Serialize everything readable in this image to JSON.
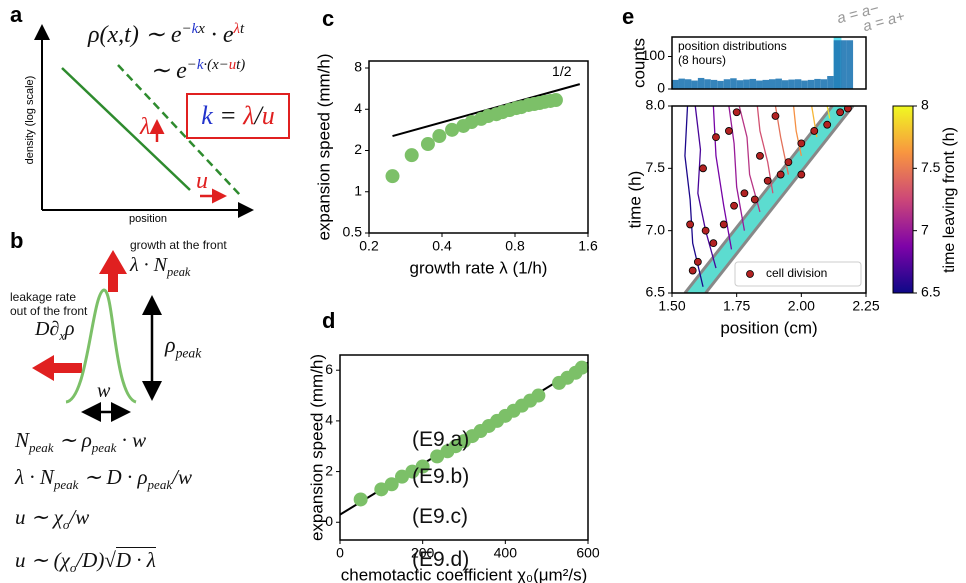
{
  "diagram_a": {
    "label": "a",
    "y_axis_label": "density (log scale)",
    "x_axis_label": "position",
    "equation_1": [
      {
        "text": "ρ(x,t) ∼ e"
      },
      {
        "text": "−",
        "pos": "sup"
      },
      {
        "text": "k",
        "pos": "sup",
        "color": "#2233cc"
      },
      {
        "text": "x",
        "pos": "sup"
      },
      {
        "text": " · e"
      },
      {
        "text": "λ",
        "pos": "sup",
        "color": "#e02020"
      },
      {
        "text": "t",
        "pos": "sup"
      }
    ],
    "equation_2": [
      {
        "text": "∼ e"
      },
      {
        "text": "−",
        "pos": "sup"
      },
      {
        "text": "k",
        "pos": "sup",
        "color": "#2233cc"
      },
      {
        "text": "·(x−",
        "pos": "sup"
      },
      {
        "text": "u",
        "pos": "sup",
        "color": "#e02020"
      },
      {
        "text": "t)",
        "pos": "sup"
      }
    ],
    "boxed_equation": [
      {
        "text": "k",
        "color": "#2233cc"
      },
      {
        "text": " = "
      },
      {
        "text": "λ",
        "color": "#e02020"
      },
      {
        "text": "/"
      },
      {
        "text": "u",
        "color": "#e02020"
      }
    ],
    "arrow_labels": [
      "λ",
      "u"
    ]
  },
  "diagram_b": {
    "label": "b",
    "growth_label": "growth at the front",
    "growth_rate": [
      {
        "text": "λ · N"
      },
      {
        "text": "peak",
        "pos": "sub"
      }
    ],
    "leakage_label_1": "leakage rate",
    "leakage_label_2": "out of the front",
    "leakage_rate": [
      {
        "text": "D∂"
      },
      {
        "text": "x",
        "pos": "sub"
      },
      {
        "text": "ρ"
      }
    ],
    "height": [
      {
        "text": "ρ"
      },
      {
        "text": "peak",
        "pos": "sub"
      }
    ],
    "width": [
      {
        "text": "w"
      }
    ],
    "equations": [
      {
        "expr": [
          {
            "text": "N"
          },
          {
            "text": "peak",
            "pos": "sub"
          },
          {
            "text": " ∼ ρ"
          },
          {
            "text": "peak",
            "pos": "sub"
          },
          {
            "text": " · w"
          }
        ],
        "tag": "(E9.a)"
      },
      {
        "expr": [
          {
            "text": "λ · N"
          },
          {
            "text": "peak",
            "pos": "sub"
          },
          {
            "text": " ∼ D · ρ"
          },
          {
            "text": "peak",
            "pos": "sub"
          },
          {
            "text": "/w"
          }
        ],
        "tag": "(E9.b)"
      },
      {
        "expr": [
          {
            "text": "u ∼ χ"
          },
          {
            "text": "o",
            "pos": "sub"
          },
          {
            "text": "/w"
          }
        ],
        "tag": "(E9.c)"
      },
      {
        "expr": [
          {
            "text": "u ∼ (χ"
          },
          {
            "text": "o",
            "pos": "sub"
          },
          {
            "text": "/D)√"
          },
          {
            "text": "D · λ",
            "pos": "over"
          }
        ],
        "tag": "(E9.d)"
      }
    ]
  },
  "chart_data": [
    {
      "type": "scatter",
      "label": "c",
      "x_label": "growth rate λ (1/h)",
      "y_label": "expansion speed (mm/h)",
      "xscale": "log",
      "yscale": "log",
      "xlim": [
        0.2,
        1.6
      ],
      "ylim": [
        0.5,
        9
      ],
      "xticks": [
        0.2,
        0.4,
        0.8,
        1.6
      ],
      "yticks": [
        0.5,
        1,
        2,
        4,
        8
      ],
      "color": "#7cc068",
      "x": [
        0.25,
        0.3,
        0.35,
        0.39,
        0.44,
        0.49,
        0.53,
        0.58,
        0.62,
        0.67,
        0.71,
        0.76,
        0.81,
        0.85,
        0.91,
        0.96,
        1.01,
        1.06,
        1.12,
        1.18
      ],
      "y": [
        1.3,
        1.85,
        2.23,
        2.55,
        2.83,
        3.02,
        3.23,
        3.4,
        3.57,
        3.68,
        3.81,
        3.95,
        4.08,
        4.15,
        4.3,
        4.37,
        4.44,
        4.53,
        4.6,
        4.67
      ],
      "reference_line": {
        "label": "1/2",
        "x": [
          0.25,
          1.48
        ],
        "y": [
          2.55,
          6.1
        ]
      }
    },
    {
      "type": "scatter",
      "label": "d",
      "x_label": "chemotactic coefficient χ₀(μm²/s)",
      "y_label": "expansion speed (mm/h)",
      "xlim": [
        0,
        600
      ],
      "ylim": [
        -0.7,
        6.6
      ],
      "xticks": [
        0,
        200,
        400,
        600
      ],
      "yticks": [
        0,
        2,
        4,
        6
      ],
      "color": "#7cc068",
      "x": [
        50,
        100,
        125,
        150,
        175,
        200,
        235,
        260,
        280,
        300,
        320,
        340,
        360,
        380,
        400,
        420,
        440,
        460,
        480,
        530,
        550,
        570,
        585
      ],
      "y": [
        0.9,
        1.3,
        1.5,
        1.8,
        2.0,
        2.2,
        2.6,
        2.8,
        3.0,
        3.2,
        3.4,
        3.6,
        3.8,
        4.0,
        4.2,
        4.4,
        4.6,
        4.8,
        5.0,
        5.5,
        5.7,
        5.9,
        6.1
      ],
      "fit_line": {
        "x": [
          0,
          600
        ],
        "y": [
          0.3,
          6.3
        ]
      }
    },
    {
      "type": "histogram",
      "label": "e",
      "y_label": "counts",
      "annotation": [
        "position distributions",
        "(8 hours)"
      ],
      "side_annotations": [
        "a = a−",
        "a = a+"
      ],
      "xlim": [
        1.5,
        2.25
      ],
      "ylim": [
        0,
        160
      ],
      "yticks": [
        0,
        100
      ],
      "color": "#1f77b4",
      "highlight": {
        "x": [
          2.125,
          2.155
        ],
        "color": "#5fe3f2"
      },
      "bins": [
        1.5,
        1.525,
        1.55,
        1.575,
        1.6,
        1.625,
        1.65,
        1.675,
        1.7,
        1.725,
        1.75,
        1.775,
        1.8,
        1.825,
        1.85,
        1.875,
        1.9,
        1.925,
        1.95,
        1.975,
        2.0,
        2.025,
        2.05,
        2.075,
        2.1,
        2.125,
        2.15,
        2.175,
        2.2,
        2.225,
        2.25
      ],
      "counts": [
        28,
        32,
        30,
        26,
        34,
        30,
        28,
        25,
        30,
        33,
        27,
        29,
        31,
        26,
        28,
        30,
        32,
        27,
        29,
        30,
        26,
        28,
        31,
        30,
        40,
        150,
        150,
        150,
        0,
        0
      ]
    },
    {
      "type": "line",
      "x_label": "position (cm)",
      "y_label": "time (h)",
      "xlim": [
        1.5,
        2.25
      ],
      "ylim": [
        6.5,
        8
      ],
      "xticks": [
        {
          "value": 1.5,
          "label": "1.50"
        },
        1.75,
        {
          "value": 2,
          "label": "2.00"
        },
        2.25
      ],
      "yticks": [
        6.5,
        {
          "value": 7,
          "label": "7.0"
        },
        7.5,
        {
          "value": 8,
          "label": "8.0"
        }
      ],
      "color_scale": {
        "label": "time leaving front (h)",
        "lim": [
          6.5,
          8
        ],
        "ticks": [
          6.5,
          7,
          7.5,
          8
        ]
      },
      "front_edges": [
        {
          "x": [
            1.55,
            2.12
          ],
          "y": [
            6.5,
            8
          ]
        },
        {
          "x": [
            1.63,
            2.2
          ],
          "y": [
            6.5,
            8
          ]
        }
      ],
      "front_color": "#3fd6c8",
      "series": [
        {
          "t_leave": 6.55,
          "x": [
            1.62,
            1.58,
            1.57,
            1.55,
            1.56
          ],
          "y": [
            6.55,
            6.9,
            7.25,
            7.6,
            8.0
          ]
        },
        {
          "t_leave": 6.7,
          "x": [
            1.67,
            1.63,
            1.6,
            1.61,
            1.59
          ],
          "y": [
            6.7,
            7.0,
            7.3,
            7.65,
            8.0
          ]
        },
        {
          "t_leave": 6.85,
          "x": [
            1.73,
            1.7,
            1.67,
            1.66
          ],
          "y": [
            6.85,
            7.2,
            7.6,
            8.0
          ]
        },
        {
          "t_leave": 7.0,
          "x": [
            1.78,
            1.75,
            1.74,
            1.72
          ],
          "y": [
            7.0,
            7.35,
            7.7,
            8.0
          ]
        },
        {
          "t_leave": 7.15,
          "x": [
            1.84,
            1.8,
            1.79,
            1.76
          ],
          "y": [
            7.15,
            7.45,
            7.75,
            8.0
          ]
        },
        {
          "t_leave": 7.3,
          "x": [
            1.89,
            1.87,
            1.84,
            1.83
          ],
          "y": [
            7.3,
            7.55,
            7.8,
            8.0
          ]
        },
        {
          "t_leave": 7.45,
          "x": [
            1.95,
            1.92,
            1.9
          ],
          "y": [
            7.45,
            7.75,
            8.0
          ]
        },
        {
          "t_leave": 7.6,
          "x": [
            2.0,
            1.98,
            1.97
          ],
          "y": [
            7.6,
            7.8,
            8.0
          ]
        },
        {
          "t_leave": 7.75,
          "x": [
            2.06,
            2.04
          ],
          "y": [
            7.75,
            8.0
          ]
        },
        {
          "t_leave": 7.9,
          "x": [
            2.11,
            2.1
          ],
          "y": [
            7.9,
            8.0
          ]
        }
      ],
      "points": {
        "name": "cell division",
        "color": "#b22222",
        "x": [
          1.58,
          1.6,
          1.57,
          1.63,
          1.66,
          1.7,
          1.74,
          1.78,
          1.82,
          1.87,
          1.92,
          1.95,
          2.0,
          2.05,
          2.1,
          2.15,
          1.75,
          1.67,
          1.62,
          1.84,
          2.0,
          1.72,
          2.18,
          1.9
        ],
        "y": [
          6.68,
          6.75,
          7.05,
          7.0,
          6.9,
          7.05,
          7.2,
          7.3,
          7.25,
          7.4,
          7.45,
          7.55,
          7.7,
          7.8,
          7.85,
          7.95,
          7.95,
          7.75,
          7.5,
          7.6,
          7.45,
          7.8,
          7.98,
          7.92
        ]
      }
    }
  ]
}
